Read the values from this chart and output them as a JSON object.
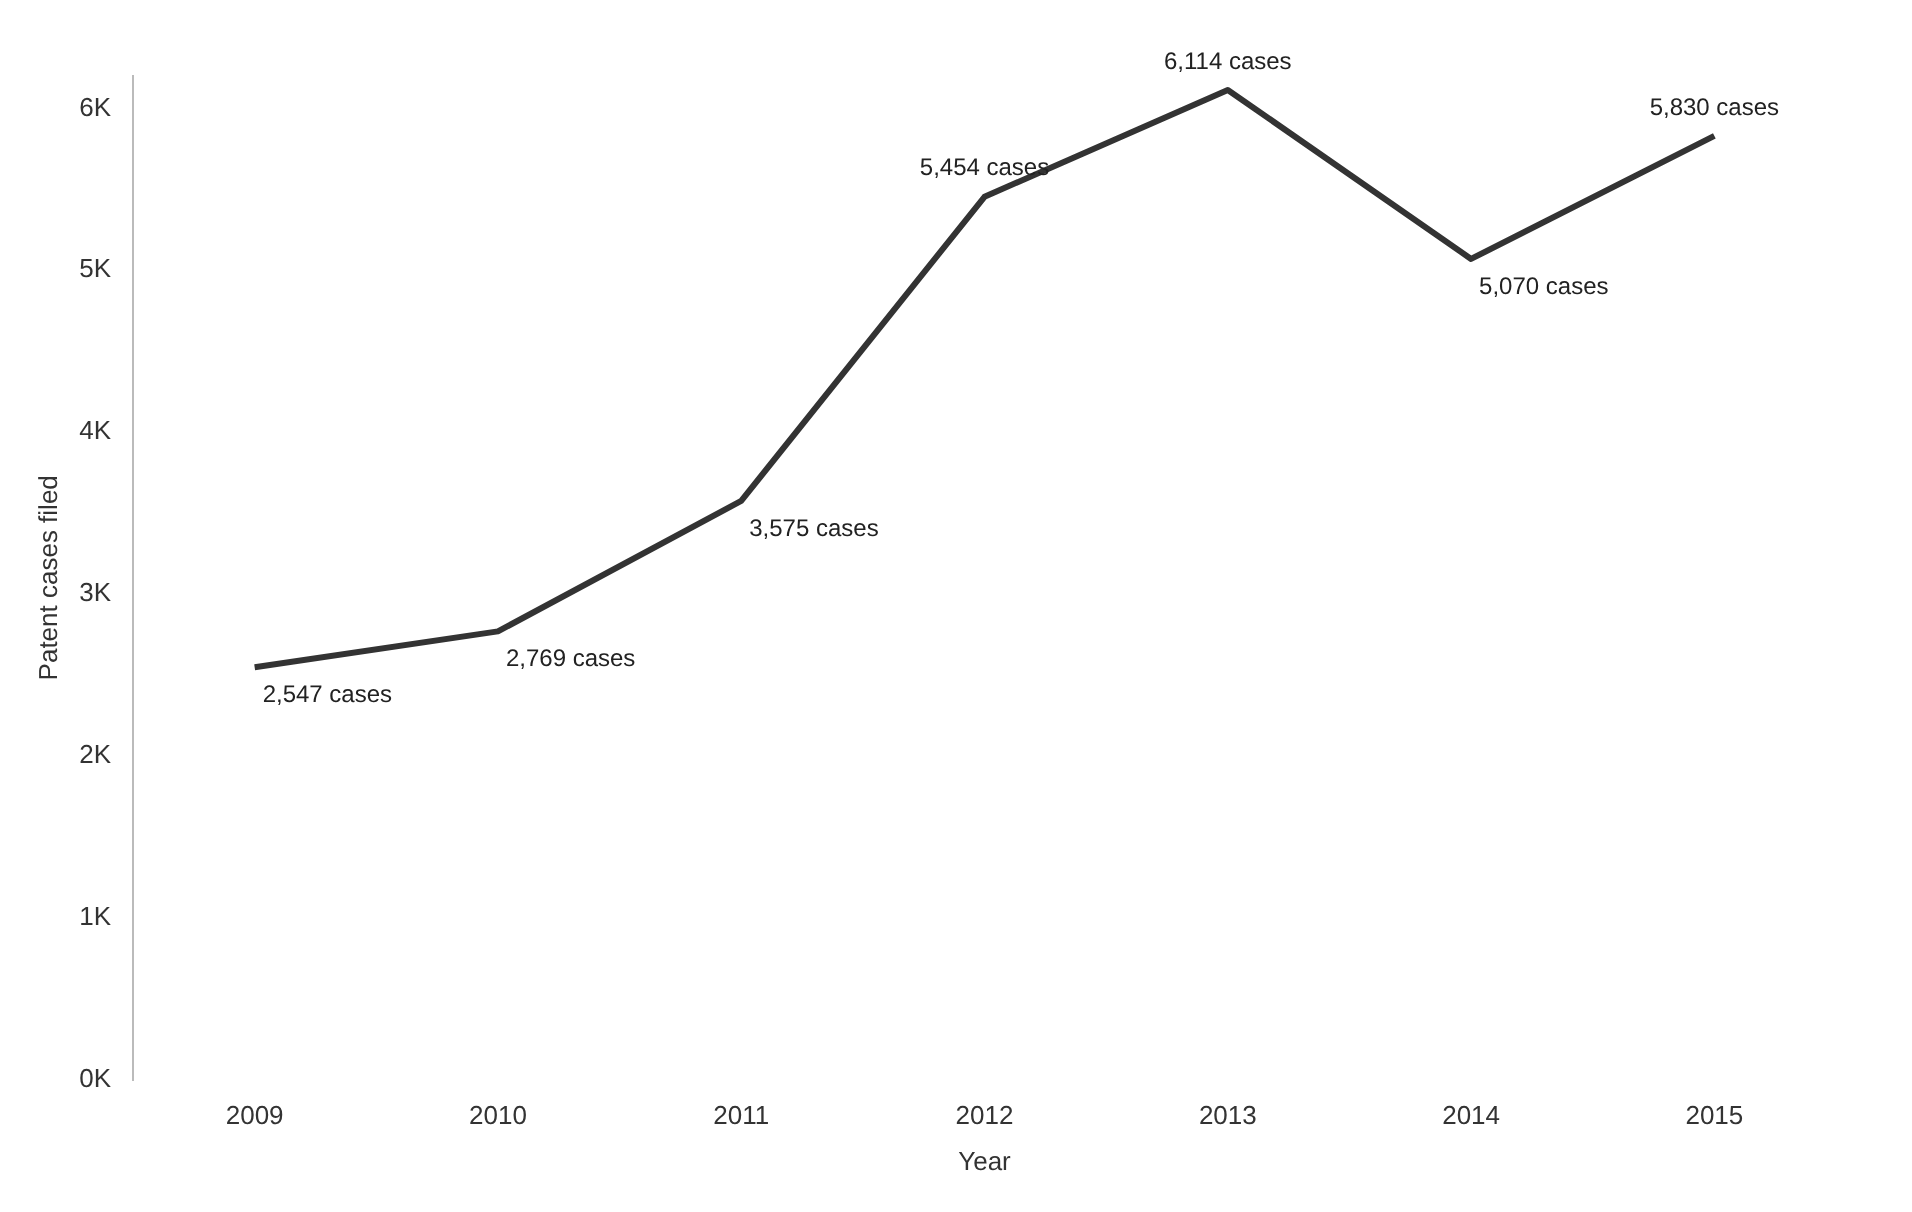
{
  "chart_data": {
    "type": "line",
    "xlabel": "Year",
    "ylabel": "Patent cases filed",
    "categories": [
      "2009",
      "2010",
      "2011",
      "2012",
      "2013",
      "2014",
      "2015"
    ],
    "series": [
      {
        "color": "#333333",
        "values": [
          2547,
          2769,
          3575,
          5454,
          6114,
          5070,
          5830
        ],
        "value_labels": [
          "2,547 cases",
          "2,769 cases",
          "3,575 cases",
          "5,454 cases",
          "6,114 cases",
          "5,070 cases",
          "5,830 cases"
        ]
      }
    ],
    "ylim": [
      0,
      6200
    ],
    "yticks": [
      {
        "value": 0,
        "label": "0K"
      },
      {
        "value": 1000,
        "label": "1K"
      },
      {
        "value": 2000,
        "label": "2K"
      },
      {
        "value": 3000,
        "label": "3K"
      },
      {
        "value": 4000,
        "label": "4K"
      },
      {
        "value": 5000,
        "label": "5K"
      },
      {
        "value": 6000,
        "label": "6K"
      }
    ],
    "grid": false,
    "legend": false,
    "marker": "none",
    "line_style": "solid"
  }
}
